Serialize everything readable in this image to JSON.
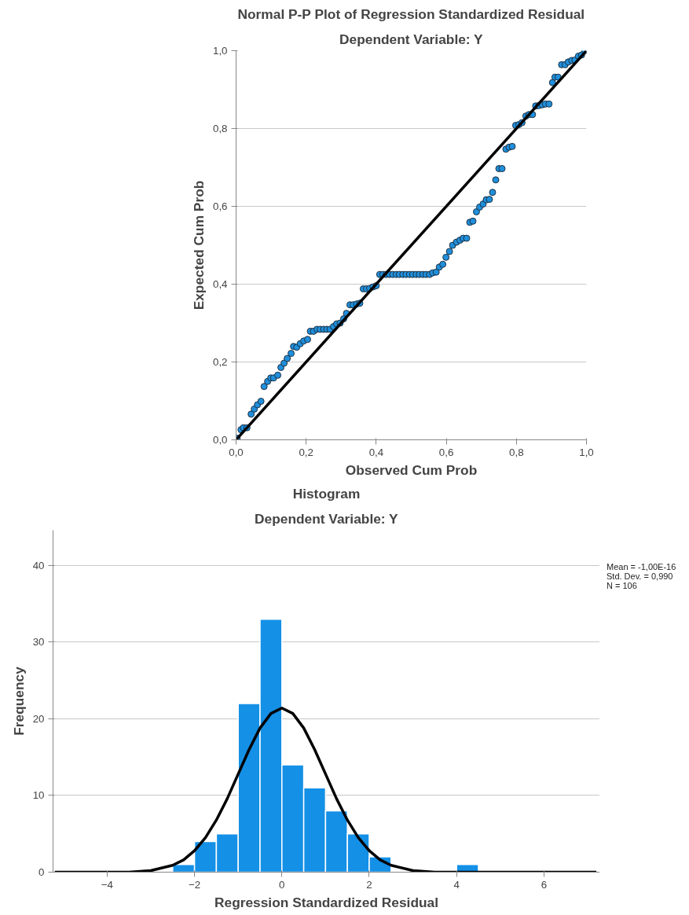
{
  "chart_data": [
    {
      "type": "scatter",
      "title": "Normal P-P Plot of Regression Standardized Residual",
      "subtitle": "Dependent Variable: Y",
      "xlabel": "Observed Cum Prob",
      "ylabel": "Expected Cum Prob",
      "xlim": [
        0,
        1
      ],
      "ylim": [
        0,
        1
      ],
      "xticks": [
        {
          "value": 0,
          "label": "0,0"
        },
        {
          "value": 0.2,
          "label": "0,2"
        },
        {
          "value": 0.4,
          "label": "0,4"
        },
        {
          "value": 0.6,
          "label": "0,6"
        },
        {
          "value": 0.8,
          "label": "0,8"
        },
        {
          "value": 1,
          "label": "1,0"
        }
      ],
      "yticks": [
        {
          "value": 0,
          "label": "0,0"
        },
        {
          "value": 0.2,
          "label": "0,2"
        },
        {
          "value": 0.4,
          "label": "0,4"
        },
        {
          "value": 0.6,
          "label": "0,6"
        },
        {
          "value": 0.8,
          "label": "0,8"
        },
        {
          "value": 1,
          "label": "1,0"
        }
      ],
      "grid": "y",
      "series": [
        {
          "type": "scatter",
          "color": "#1f8fdc",
          "marker": "circle",
          "x": [
            0.003,
            0.014,
            0.021,
            0.031,
            0.043,
            0.052,
            0.061,
            0.071,
            0.08,
            0.09,
            0.099,
            0.107,
            0.119,
            0.128,
            0.137,
            0.146,
            0.157,
            0.164,
            0.173,
            0.183,
            0.193,
            0.204,
            0.212,
            0.221,
            0.231,
            0.24,
            0.25,
            0.259,
            0.268,
            0.278,
            0.287,
            0.297,
            0.307,
            0.315,
            0.325,
            0.334,
            0.344,
            0.353,
            0.363,
            0.372,
            0.381,
            0.391,
            0.4,
            0.41,
            0.419,
            0.428,
            0.438,
            0.447,
            0.457,
            0.466,
            0.476,
            0.485,
            0.495,
            0.504,
            0.514,
            0.523,
            0.533,
            0.542,
            0.552,
            0.561,
            0.571,
            0.58,
            0.59,
            0.599,
            0.609,
            0.618,
            0.629,
            0.639,
            0.648,
            0.658,
            0.667,
            0.676,
            0.686,
            0.695,
            0.705,
            0.714,
            0.723,
            0.732,
            0.741,
            0.75,
            0.759,
            0.77,
            0.779,
            0.788,
            0.798,
            0.807,
            0.816,
            0.827,
            0.836,
            0.846,
            0.855,
            0.864,
            0.874,
            0.883,
            0.893,
            0.903,
            0.91,
            0.919,
            0.929,
            0.939,
            0.948,
            0.958,
            0.967,
            0.977,
            0.986,
            0.995
          ],
          "values": [
            0.004,
            0.026,
            0.031,
            0.031,
            0.066,
            0.079,
            0.09,
            0.099,
            0.137,
            0.15,
            0.159,
            0.159,
            0.166,
            0.186,
            0.197,
            0.209,
            0.222,
            0.24,
            0.238,
            0.247,
            0.254,
            0.258,
            0.279,
            0.279,
            0.284,
            0.284,
            0.284,
            0.284,
            0.284,
            0.291,
            0.298,
            0.3,
            0.311,
            0.325,
            0.347,
            0.347,
            0.349,
            0.351,
            0.388,
            0.388,
            0.389,
            0.393,
            0.396,
            0.425,
            0.425,
            0.425,
            0.425,
            0.425,
            0.425,
            0.425,
            0.425,
            0.425,
            0.425,
            0.425,
            0.425,
            0.425,
            0.425,
            0.425,
            0.425,
            0.429,
            0.431,
            0.444,
            0.451,
            0.469,
            0.484,
            0.5,
            0.508,
            0.513,
            0.518,
            0.518,
            0.559,
            0.562,
            0.586,
            0.598,
            0.606,
            0.617,
            0.618,
            0.636,
            0.668,
            0.697,
            0.697,
            0.747,
            0.752,
            0.754,
            0.808,
            0.81,
            0.815,
            0.832,
            0.836,
            0.836,
            0.858,
            0.859,
            0.861,
            0.863,
            0.863,
            0.918,
            0.932,
            0.932,
            0.964,
            0.964,
            0.971,
            0.975,
            0.976,
            0.986,
            0.989,
            1.0
          ]
        },
        {
          "type": "line",
          "color": "#000000",
          "x": [
            0,
            1
          ],
          "values": [
            0,
            1
          ]
        }
      ]
    },
    {
      "type": "histogram",
      "title": "Histogram",
      "subtitle": "Dependent Variable: Y",
      "xlabel": "Regression Standardized Residual",
      "ylabel": "Frequency",
      "xlim": [
        -5.24,
        7.28
      ],
      "ylim": [
        0,
        44.6
      ],
      "xticks": [
        -4,
        -2,
        0,
        2,
        4,
        6
      ],
      "yticks": [
        0,
        10,
        20,
        30,
        40
      ],
      "grid": "y",
      "color": "#1490e6",
      "bins": [
        -2.5,
        -2,
        -1.5,
        -1,
        -0.5,
        0,
        0.5,
        1,
        1.5,
        2,
        2.5,
        3,
        3.5,
        4,
        4.5
      ],
      "values": [
        1,
        4,
        5,
        22,
        33,
        14,
        11,
        8,
        5,
        2,
        0,
        0,
        0,
        1
      ],
      "annotations": [
        "Mean = -1,00E-16",
        "Std. Dev. = 0,990",
        "N = 106"
      ],
      "series": [
        {
          "type": "line",
          "color": "#000000",
          "x": [
            -5.2,
            -4,
            -3.5,
            -3,
            -2.5,
            -2.25,
            -2,
            -1.75,
            -1.5,
            -1.25,
            -1,
            -0.75,
            -0.5,
            -0.25,
            0,
            0.25,
            0.5,
            0.75,
            1,
            1.25,
            1.5,
            1.75,
            2,
            2.25,
            2.5,
            3,
            3.5,
            4,
            5,
            6,
            7.2
          ],
          "values": [
            0,
            0,
            0,
            0.2,
            0.9,
            1.6,
            2.8,
            4.5,
            6.8,
            9.6,
            12.8,
            16.0,
            18.8,
            20.7,
            21.4,
            20.7,
            18.8,
            16.0,
            12.8,
            9.6,
            6.8,
            4.5,
            2.8,
            1.6,
            0.9,
            0.2,
            0,
            0,
            0,
            0,
            0
          ]
        }
      ]
    }
  ]
}
